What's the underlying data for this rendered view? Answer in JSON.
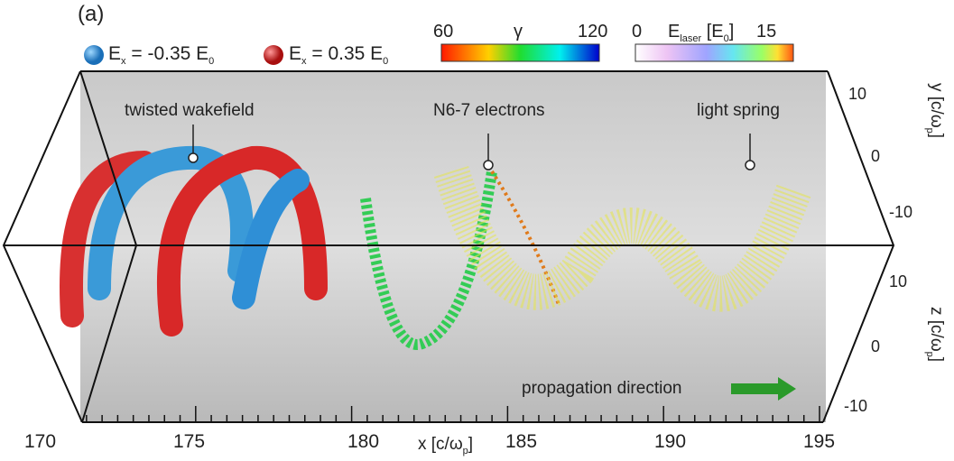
{
  "panel_label": "(a)",
  "legend": [
    {
      "label": "E",
      "sub": "x",
      "value": " = -0.35 E",
      "vsub": "0",
      "color": "#2f8fd6"
    },
    {
      "label": "E",
      "sub": "x",
      "value": " = 0.35 E",
      "vsub": "0",
      "color": "#d42222"
    }
  ],
  "colorbars": [
    {
      "title": "γ",
      "min": "60",
      "max": "120",
      "colors": [
        "#ff1a00",
        "#ffcc00",
        "#aaff00",
        "#00dd33",
        "#00ffee",
        "#0055ff",
        "#0000cc"
      ]
    },
    {
      "title_main": "E",
      "title_sub": "laser",
      "title_unit": " [E",
      "title_unit_sub": "0",
      "title_close": "]",
      "min": "0",
      "max": "15",
      "colors": [
        "#ffffff",
        "#eec4f4",
        "#9fa4ff",
        "#66e6f0",
        "#9aff66",
        "#ffe033",
        "#ff5511"
      ]
    }
  ],
  "annotations": {
    "wakefield": "twisted wakefield",
    "electrons": "N6-7 electrons",
    "spring": "light spring",
    "propagation": "propagation direction"
  },
  "x_axis": {
    "ticks": [
      "170",
      "175",
      "180",
      "185",
      "190",
      "195"
    ],
    "label": "x [c/ω",
    "label_sub": "p",
    "label_close": "]"
  },
  "y_axis": {
    "ticks": [
      "10",
      "0",
      "-10"
    ],
    "label": "y [c/ω",
    "label_sub": "p",
    "label_close": "]"
  },
  "z_axis": {
    "ticks": [
      "10",
      "0",
      "-10"
    ],
    "label": "z [c/ω",
    "label_sub": "p",
    "label_close": "]"
  },
  "arrow_color": "#2a9a2a"
}
